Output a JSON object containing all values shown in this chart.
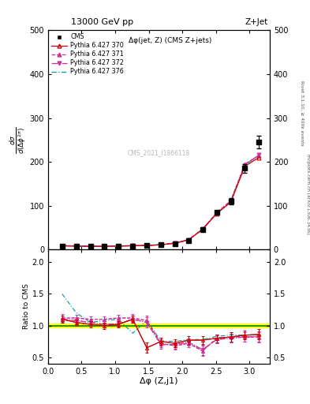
{
  "title_top": "13000 GeV pp",
  "title_right": "Z+Jet",
  "xlabel": "Δφ (Z,j1)",
  "ylabel_ratio": "Ratio to CMS",
  "annotation_main": "Δφ(jet, Z) (CMS Z+jets)",
  "annotation_watermark": "CMS_2021_I1866118",
  "right_label": "Rivet 3.1.10, ≥ 400k events",
  "right_label2": "mcplots.cern.ch [arXiv:1306.3436]",
  "cms_x": [
    0.21,
    0.42,
    0.63,
    0.84,
    1.05,
    1.26,
    1.47,
    1.68,
    1.89,
    2.09,
    2.3,
    2.51,
    2.72,
    2.93,
    3.14
  ],
  "cms_y": [
    8.0,
    7.5,
    7.2,
    7.5,
    7.8,
    8.2,
    9.0,
    10.5,
    14.0,
    20.0,
    45.0,
    85.0,
    110.0,
    185.0,
    245.0
  ],
  "cms_yerr": [
    0.5,
    0.5,
    0.5,
    0.5,
    0.5,
    0.5,
    0.6,
    0.7,
    1.0,
    1.5,
    2.5,
    4.0,
    7.0,
    10.0,
    15.0
  ],
  "p370_x": [
    0.21,
    0.42,
    0.63,
    0.84,
    1.05,
    1.26,
    1.47,
    1.68,
    1.89,
    2.09,
    2.3,
    2.51,
    2.72,
    2.93,
    3.14
  ],
  "p370_y": [
    8.5,
    7.8,
    7.3,
    7.4,
    7.9,
    8.8,
    9.2,
    11.0,
    14.5,
    22.0,
    46.0,
    82.0,
    108.0,
    190.0,
    210.0
  ],
  "p371_x": [
    0.21,
    0.42,
    0.63,
    0.84,
    1.05,
    1.26,
    1.47,
    1.68,
    1.89,
    2.09,
    2.3,
    2.51,
    2.72,
    2.93,
    3.14
  ],
  "p371_y": [
    8.8,
    8.0,
    7.5,
    7.6,
    8.0,
    9.0,
    9.5,
    11.5,
    15.0,
    22.5,
    47.0,
    84.0,
    112.0,
    195.0,
    215.0
  ],
  "p372_x": [
    0.21,
    0.42,
    0.63,
    0.84,
    1.05,
    1.26,
    1.47,
    1.68,
    1.89,
    2.09,
    2.3,
    2.51,
    2.72,
    2.93,
    3.14
  ],
  "p372_y": [
    8.6,
    7.9,
    7.4,
    7.5,
    7.9,
    8.8,
    9.3,
    11.2,
    14.8,
    22.2,
    46.5,
    83.0,
    110.0,
    192.0,
    216.0
  ],
  "p376_x": [
    0.21,
    0.42,
    0.63,
    0.84,
    1.05,
    1.26,
    1.47,
    1.68,
    1.89,
    2.09,
    2.3,
    2.51,
    2.72,
    2.93,
    3.14
  ],
  "p376_y": [
    9.5,
    8.5,
    7.8,
    7.8,
    8.2,
    9.2,
    9.5,
    11.2,
    14.8,
    22.0,
    46.0,
    82.0,
    109.0,
    193.0,
    215.0
  ],
  "ratio_p370": [
    1.1,
    1.05,
    1.02,
    1.0,
    1.02,
    1.1,
    0.65,
    0.75,
    0.72,
    0.77,
    0.77,
    0.8,
    0.82,
    0.85,
    0.86
  ],
  "ratio_p371": [
    1.12,
    1.12,
    1.1,
    1.1,
    1.12,
    1.12,
    1.08,
    0.72,
    0.68,
    0.72,
    0.6,
    0.8,
    0.82,
    0.82,
    0.82
  ],
  "ratio_p372": [
    1.1,
    1.08,
    1.05,
    1.02,
    1.03,
    1.1,
    1.05,
    0.7,
    0.7,
    0.74,
    0.62,
    0.78,
    0.8,
    0.82,
    0.83
  ],
  "ratio_p376": [
    1.5,
    1.2,
    1.05,
    1.08,
    1.1,
    0.88,
    1.08,
    0.76,
    0.75,
    0.78,
    0.78,
    0.83,
    0.85,
    0.85,
    0.85
  ],
  "ratio_p370_err": [
    0.06,
    0.05,
    0.05,
    0.05,
    0.05,
    0.06,
    0.08,
    0.06,
    0.06,
    0.06,
    0.06,
    0.06,
    0.07,
    0.07,
    0.08
  ],
  "ratio_p371_err": [
    0.06,
    0.05,
    0.05,
    0.05,
    0.05,
    0.06,
    0.08,
    0.06,
    0.06,
    0.06,
    0.08,
    0.06,
    0.07,
    0.07,
    0.08
  ],
  "ratio_p372_err": [
    0.06,
    0.05,
    0.05,
    0.05,
    0.05,
    0.06,
    0.08,
    0.06,
    0.06,
    0.06,
    0.08,
    0.06,
    0.07,
    0.07,
    0.08
  ],
  "ratio_p376_err": [
    0.06,
    0.05,
    0.05,
    0.05,
    0.05,
    0.06,
    0.08,
    0.06,
    0.06,
    0.06,
    0.06,
    0.06,
    0.07,
    0.07,
    0.08
  ],
  "color_cms": "#000000",
  "color_p370": "#cc0000",
  "color_p371": "#cc3399",
  "color_p372": "#cc3399",
  "color_p376": "#009999",
  "ylim_main": [
    0,
    500
  ],
  "ylim_ratio": [
    0.4,
    2.2
  ],
  "xlim": [
    0.0,
    3.3
  ],
  "yticks_main": [
    0,
    100,
    200,
    300,
    400,
    500
  ],
  "yticks_ratio": [
    0.5,
    1.0,
    1.5,
    2.0
  ]
}
